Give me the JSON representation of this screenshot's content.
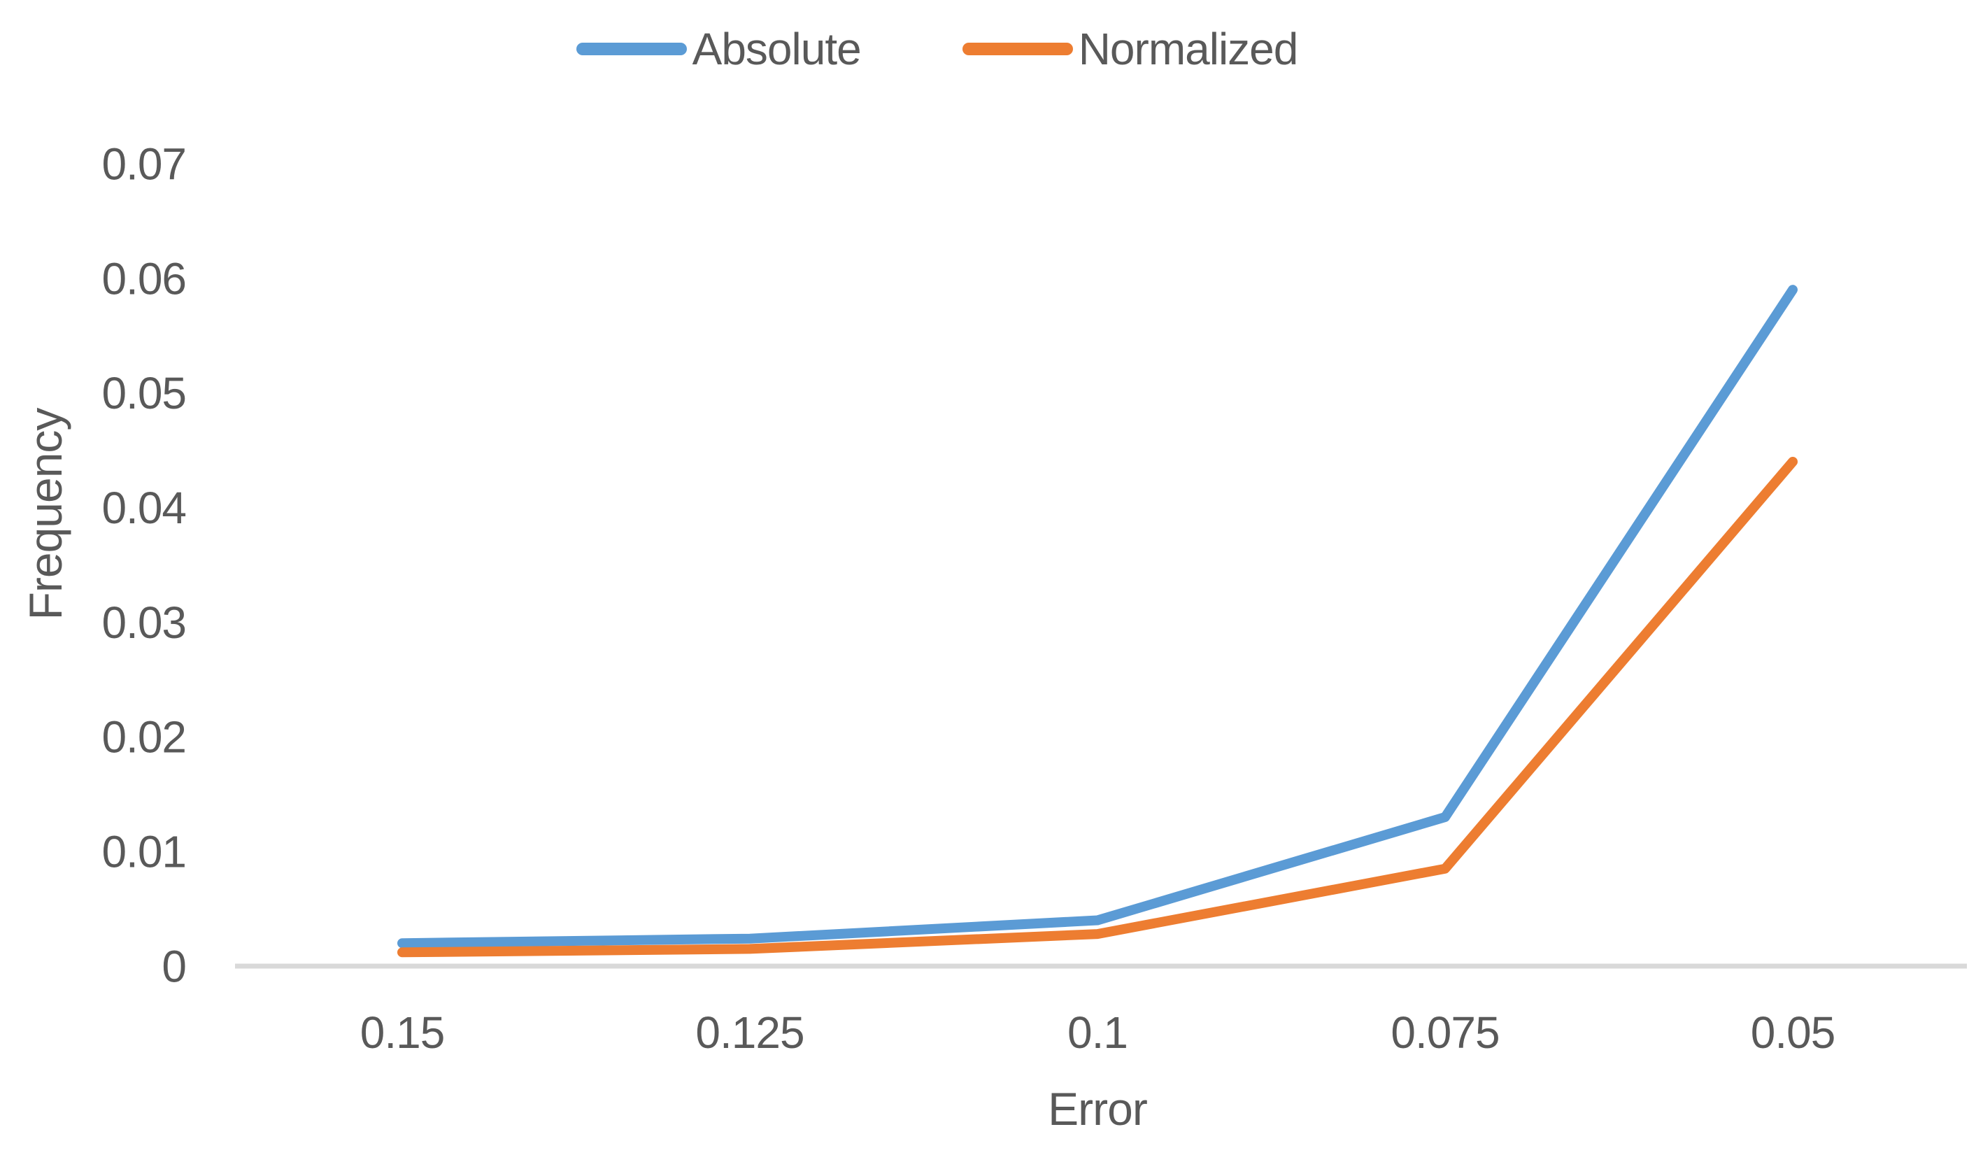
{
  "chart_data": {
    "type": "line",
    "title": "",
    "xlabel": "Error",
    "ylabel": "Frequency",
    "categories": [
      "0.15",
      "0.125",
      "0.1",
      "0.075",
      "0.05"
    ],
    "series": [
      {
        "name": "Absolute",
        "color": "#5B9BD5",
        "values": [
          0.002,
          0.0024,
          0.004,
          0.013,
          0.059
        ]
      },
      {
        "name": "Normalized",
        "color": "#ED7D31",
        "values": [
          0.0012,
          0.0015,
          0.0028,
          0.0085,
          0.044
        ]
      }
    ],
    "y_ticks": {
      "labels": [
        "0",
        "0.01",
        "0.02",
        "0.03",
        "0.04",
        "0.05",
        "0.06",
        "0.07"
      ],
      "values": [
        0,
        0.01,
        0.02,
        0.03,
        0.04,
        0.05,
        0.06,
        0.07
      ]
    },
    "ylim": [
      0,
      0.07
    ],
    "legend_position": "top",
    "grid": false,
    "colors": {
      "text": "#595959",
      "axis_line": "#D9D9D9",
      "background": "#FFFFFF"
    }
  }
}
